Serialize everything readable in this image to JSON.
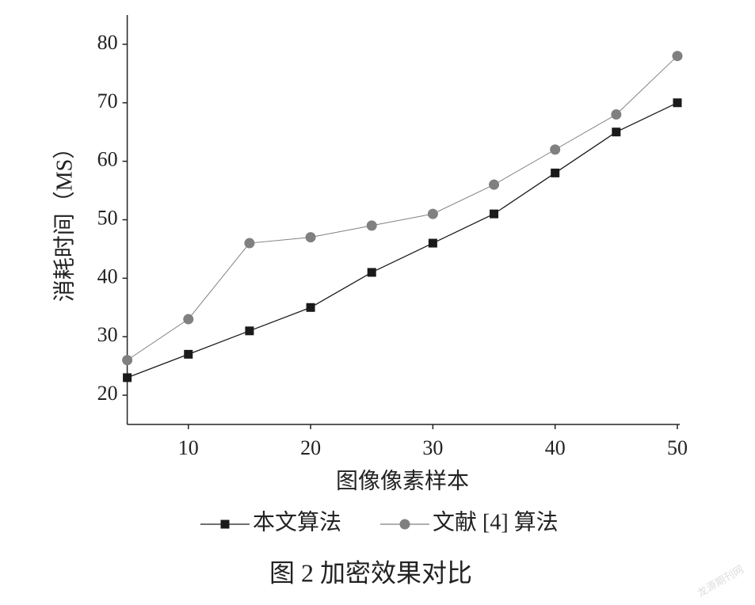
{
  "chart_data": {
    "type": "line",
    "x_label": "图像像素样本",
    "y_label": "消耗时间（MS）",
    "caption": "图 2   加密效果对比",
    "watermark": "龙源期刊网",
    "x": [
      5,
      10,
      15,
      20,
      25,
      30,
      35,
      40,
      45,
      50
    ],
    "series": [
      {
        "name": "本文算法",
        "color": "#1a1a1a",
        "marker": "square",
        "values": [
          23,
          27,
          31,
          35,
          41,
          46,
          51,
          58,
          65,
          70
        ]
      },
      {
        "name": "文献 [4] 算法",
        "color": "#808080",
        "marker": "circle",
        "values": [
          26,
          33,
          46,
          47,
          49,
          51,
          56,
          62,
          68,
          78
        ]
      }
    ],
    "xlim": [
      5,
      50
    ],
    "xticks": [
      10,
      20,
      30,
      40,
      50
    ],
    "ylim": [
      15,
      85
    ],
    "yticks": [
      20,
      30,
      40,
      50,
      60,
      70,
      80
    ],
    "grid": false,
    "legend": "bottom"
  }
}
